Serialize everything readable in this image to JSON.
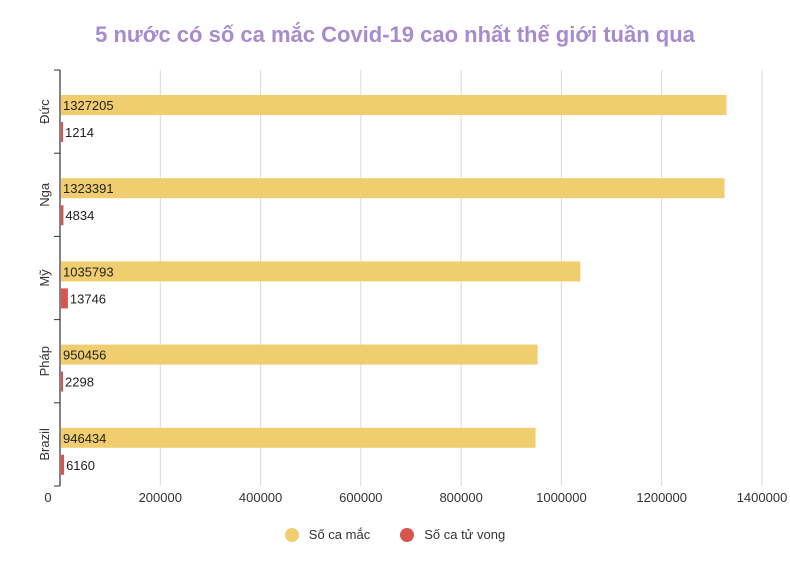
{
  "chart_data": {
    "type": "bar",
    "orientation": "horizontal",
    "title": "5 nước có số ca mắc Covid-19 cao nhất thế giới tuần qua",
    "categories": [
      "Đức",
      "Nga",
      "Mỹ",
      "Pháp",
      "Brazil"
    ],
    "series": [
      {
        "name": "Số ca mắc",
        "color": "#f0cd6e",
        "values": [
          1327205,
          1323391,
          1035793,
          950456,
          946434
        ]
      },
      {
        "name": "Số ca tử vong",
        "color": "#d9534f",
        "values": [
          1214,
          4834,
          13746,
          2298,
          6160
        ]
      }
    ],
    "xlim": [
      0,
      1400000
    ],
    "xticks": [
      0,
      200000,
      400000,
      600000,
      800000,
      1000000,
      1200000,
      1400000
    ],
    "grid": true,
    "legend_position": "bottom",
    "title_color": "#a78bcc"
  }
}
